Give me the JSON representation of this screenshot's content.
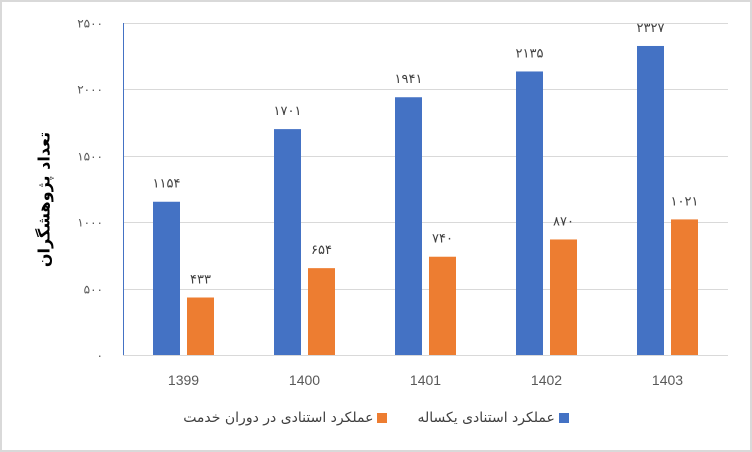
{
  "chart_data": {
    "type": "bar",
    "title": "",
    "xlabel": "",
    "ylabel": "تعداد پژوهشگران",
    "categories": [
      "1399",
      "1400",
      "1401",
      "1402",
      "1403"
    ],
    "series": [
      {
        "name": "عملکرد استنادی یکساله",
        "color": "#4472C4",
        "values": [
          1154,
          1701,
          1941,
          2135,
          2327
        ],
        "labels": [
          "۱۱۵۴",
          "۱۷۰۱",
          "۱۹۴۱",
          "۲۱۳۵",
          "۲۳۲۷"
        ]
      },
      {
        "name": "عملکرد استنادی در دوران خدمت",
        "color": "#ED7D31",
        "values": [
          433,
          654,
          740,
          870,
          1021
        ],
        "labels": [
          "۴۳۳",
          "۶۵۴",
          "۷۴۰",
          "۸۷۰",
          "۱۰۲۱"
        ]
      }
    ],
    "ylim": [
      0,
      2500
    ],
    "yticks": [
      0,
      500,
      1000,
      1500,
      2000,
      2500
    ],
    "ytick_labels": [
      "۰",
      "۵۰۰",
      "۱۰۰۰",
      "۱۵۰۰",
      "۲۰۰۰",
      "۲۵۰۰"
    ],
    "grid": true,
    "legend_position": "bottom"
  },
  "legend": {
    "item_1": "عملکرد استنادی یکساله",
    "item_2": "عملکرد استنادی در دوران خدمت"
  }
}
